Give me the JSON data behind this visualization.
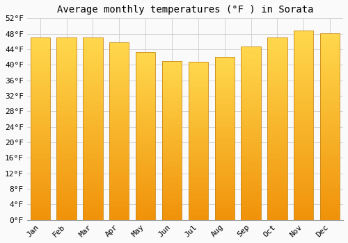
{
  "title": "Average monthly temperatures (°F ) in Sorata",
  "months": [
    "Jan",
    "Feb",
    "Mar",
    "Apr",
    "May",
    "Jun",
    "Jul",
    "Aug",
    "Sep",
    "Oct",
    "Nov",
    "Dec"
  ],
  "values": [
    47.0,
    47.0,
    47.0,
    45.8,
    43.2,
    41.0,
    40.8,
    42.0,
    44.8,
    47.0,
    48.8,
    48.2
  ],
  "bar_color_bottom": "#F0920A",
  "bar_color_top": "#FFD84D",
  "bar_edge_color": "#C8891A",
  "background_color": "#FAFAFA",
  "grid_color": "#CCCCCC",
  "title_fontsize": 10,
  "tick_fontsize": 8,
  "ylim": [
    0,
    52
  ],
  "yticks": [
    0,
    4,
    8,
    12,
    16,
    20,
    24,
    28,
    32,
    36,
    40,
    44,
    48,
    52
  ],
  "ytick_labels": [
    "0°F",
    "4°F",
    "8°F",
    "12°F",
    "16°F",
    "20°F",
    "24°F",
    "28°F",
    "32°F",
    "36°F",
    "40°F",
    "44°F",
    "48°F",
    "52°F"
  ],
  "bar_width": 0.75,
  "figsize": [
    5.0,
    3.5
  ],
  "dpi": 100
}
